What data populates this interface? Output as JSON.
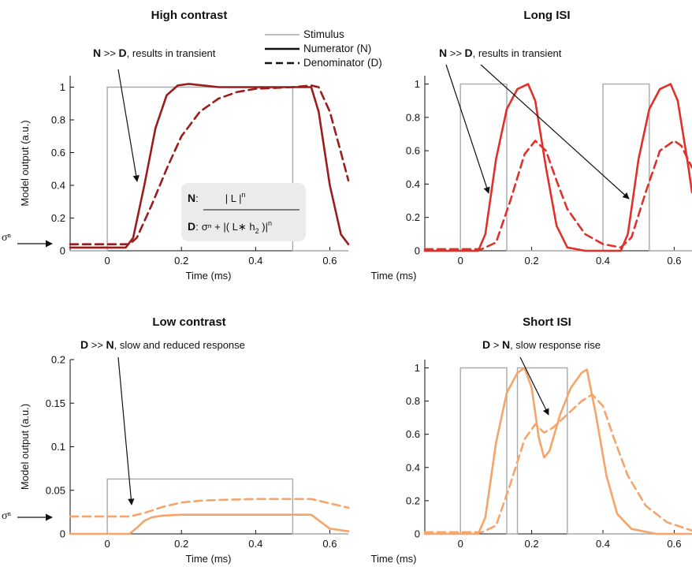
{
  "legend": {
    "entries": [
      {
        "label": "Stimulus",
        "style": "stimulus"
      },
      {
        "label": "Numerator (N)",
        "style": "solid"
      },
      {
        "label": "Denominator (D)",
        "style": "dashed"
      }
    ]
  },
  "equation": {
    "n_label": "N",
    "n_colon": ":",
    "n_expr": "| L |",
    "n_exp": "n",
    "d_label": "D",
    "d_colon": ":",
    "d_expr": "σⁿ + |( L∗ h",
    "d_sub": "2",
    "d_close": " )|",
    "d_exp": "n"
  },
  "sigma_label": "σⁿ",
  "colors": {
    "dark_red": "#9b1c1c",
    "red": "#e0302a",
    "orange": "#f5a46a",
    "stimulus": "#a9a9a9",
    "equation_bg": "#ebebeb"
  },
  "chart_data": [
    {
      "type": "line",
      "title": "High contrast",
      "xlabel": "Time (ms)",
      "ylabel": "Model output (a.u.)",
      "xlim": [
        -0.1,
        0.65
      ],
      "ylim": [
        0,
        1.07
      ],
      "xticks": [
        "0",
        "0.2",
        "0.4",
        "0.6"
      ],
      "xtick_values": [
        0,
        0.2,
        0.4,
        0.6
      ],
      "yticks": [
        "0",
        "0.2",
        "0.4",
        "0.6",
        "0.8",
        "1"
      ],
      "ytick_values": [
        0,
        0.2,
        0.4,
        0.6,
        0.8,
        1
      ],
      "annotation": {
        "bold": "N",
        "op": " >> ",
        "bold2": "D",
        "rest": ", results in transient"
      },
      "series": [
        {
          "name": "Stimulus",
          "style": "stimulus",
          "x": [
            -0.1,
            0,
            0,
            0.5,
            0.5,
            0.65
          ],
          "y": [
            0,
            0,
            1,
            1,
            0,
            0
          ]
        },
        {
          "name": "Numerator (N)",
          "style": "solid",
          "color": "dark_red",
          "x": [
            -0.1,
            0.05,
            0.07,
            0.1,
            0.13,
            0.16,
            0.19,
            0.22,
            0.26,
            0.3,
            0.4,
            0.5,
            0.55,
            0.57,
            0.6,
            0.63,
            0.65
          ],
          "y": [
            0.02,
            0.02,
            0.08,
            0.4,
            0.75,
            0.95,
            1.01,
            1.02,
            1.01,
            1.0,
            1.0,
            1.0,
            1.0,
            0.85,
            0.4,
            0.1,
            0.04
          ]
        },
        {
          "name": "Denominator (D)",
          "style": "dashed",
          "color": "dark_red",
          "x": [
            -0.1,
            0.06,
            0.08,
            0.12,
            0.16,
            0.2,
            0.25,
            0.3,
            0.35,
            0.4,
            0.5,
            0.55,
            0.57,
            0.6,
            0.63,
            0.65
          ],
          "y": [
            0.04,
            0.04,
            0.08,
            0.28,
            0.5,
            0.7,
            0.85,
            0.93,
            0.97,
            0.99,
            1.0,
            1.01,
            1.0,
            0.85,
            0.6,
            0.43
          ]
        }
      ]
    },
    {
      "type": "line",
      "title": "Long ISI",
      "xlabel": "Time (ms)",
      "ylabel": "",
      "xlim": [
        -0.1,
        0.65
      ],
      "ylim": [
        0,
        1.05
      ],
      "xticks": [
        "0",
        "0.2",
        "0.4",
        "0.6"
      ],
      "xtick_values": [
        0,
        0.2,
        0.4,
        0.6
      ],
      "yticks": [
        "0",
        "0.2",
        "0.4",
        "0.6",
        "0.8",
        "1"
      ],
      "ytick_values": [
        0,
        0.2,
        0.4,
        0.6,
        0.8,
        1
      ],
      "annotation": {
        "bold": "N",
        "op": " >> ",
        "bold2": "D",
        "rest": ", results in transient"
      },
      "series": [
        {
          "name": "Stimulus",
          "style": "stimulus",
          "x": [
            -0.1,
            0,
            0,
            0.13,
            0.13,
            0.4,
            0.4,
            0.53,
            0.53,
            0.65
          ],
          "y": [
            0,
            0,
            1,
            1,
            0,
            0,
            1,
            1,
            0,
            0
          ]
        },
        {
          "name": "Numerator (N)",
          "style": "solid",
          "color": "red",
          "x": [
            -0.1,
            0.05,
            0.07,
            0.1,
            0.13,
            0.16,
            0.19,
            0.21,
            0.24,
            0.27,
            0.3,
            0.35,
            0.45,
            0.47,
            0.5,
            0.53,
            0.56,
            0.59,
            0.61,
            0.64,
            0.65
          ],
          "y": [
            0.0,
            0.0,
            0.1,
            0.55,
            0.85,
            0.97,
            1.0,
            0.9,
            0.5,
            0.15,
            0.02,
            0.0,
            0.0,
            0.1,
            0.55,
            0.85,
            0.97,
            1.0,
            0.9,
            0.5,
            0.35
          ]
        },
        {
          "name": "Denominator (D)",
          "style": "dashed",
          "color": "red",
          "x": [
            -0.1,
            0.06,
            0.1,
            0.14,
            0.18,
            0.21,
            0.24,
            0.27,
            0.3,
            0.35,
            0.4,
            0.45,
            0.48,
            0.52,
            0.56,
            0.6,
            0.62,
            0.65
          ],
          "y": [
            0.01,
            0.01,
            0.05,
            0.3,
            0.58,
            0.66,
            0.6,
            0.42,
            0.25,
            0.1,
            0.04,
            0.02,
            0.08,
            0.35,
            0.6,
            0.66,
            0.63,
            0.5
          ]
        }
      ]
    },
    {
      "type": "line",
      "title": "Low contrast",
      "xlabel": "Time (ms)",
      "ylabel": "Model output (a.u.)",
      "xlim": [
        -0.1,
        0.65
      ],
      "ylim": [
        0,
        0.2
      ],
      "xticks": [
        "0",
        "0.2",
        "0.4",
        "0.6"
      ],
      "xtick_values": [
        0,
        0.2,
        0.4,
        0.6
      ],
      "yticks": [
        "0",
        "0.05",
        "0.1",
        "0.15",
        "0.2"
      ],
      "ytick_values": [
        0,
        0.05,
        0.1,
        0.15,
        0.2
      ],
      "annotation": {
        "bold": "D",
        "op": " >> ",
        "bold2": "N",
        "rest": ", slow and reduced response"
      },
      "series": [
        {
          "name": "Stimulus",
          "style": "stimulus",
          "x": [
            -0.1,
            0,
            0,
            0.5,
            0.5,
            0.65
          ],
          "y": [
            0,
            0,
            0.063,
            0.063,
            0,
            0
          ]
        },
        {
          "name": "Numerator (N)",
          "style": "solid",
          "color": "orange",
          "x": [
            -0.1,
            0.06,
            0.08,
            0.1,
            0.12,
            0.15,
            0.2,
            0.3,
            0.4,
            0.5,
            0.55,
            0.6,
            0.65
          ],
          "y": [
            0.0,
            0.0,
            0.007,
            0.015,
            0.019,
            0.021,
            0.022,
            0.022,
            0.022,
            0.022,
            0.022,
            0.006,
            0.003
          ]
        },
        {
          "name": "Denominator (D)",
          "style": "dashed",
          "color": "orange",
          "x": [
            -0.1,
            0.06,
            0.1,
            0.15,
            0.2,
            0.25,
            0.3,
            0.4,
            0.5,
            0.55,
            0.6,
            0.65
          ],
          "y": [
            0.02,
            0.02,
            0.024,
            0.031,
            0.036,
            0.038,
            0.039,
            0.04,
            0.04,
            0.04,
            0.035,
            0.03
          ]
        }
      ]
    },
    {
      "type": "line",
      "title": "Short ISI",
      "xlabel": "Time (ms)",
      "ylabel": "",
      "xlim": [
        -0.1,
        0.65
      ],
      "ylim": [
        0,
        1.05
      ],
      "xticks": [
        "0",
        "0.2",
        "0.4",
        "0.6"
      ],
      "xtick_values": [
        0,
        0.2,
        0.4,
        0.6
      ],
      "yticks": [
        "0",
        "0.2",
        "0.4",
        "0.6",
        "0.8",
        "1"
      ],
      "ytick_values": [
        0,
        0.2,
        0.4,
        0.6,
        0.8,
        1
      ],
      "annotation": {
        "bold": "D",
        "op": " > ",
        "bold2": "N",
        "rest": ", slow response rise"
      },
      "series": [
        {
          "name": "Stimulus",
          "style": "stimulus",
          "x": [
            -0.1,
            0,
            0,
            0.13,
            0.13,
            0.16,
            0.16,
            0.3,
            0.3,
            0.65
          ],
          "y": [
            0,
            0,
            1,
            1,
            0,
            0,
            1,
            1,
            0,
            0
          ]
        },
        {
          "name": "Numerator (N)",
          "style": "solid",
          "color": "orange",
          "x": [
            -0.1,
            0.05,
            0.07,
            0.1,
            0.13,
            0.16,
            0.18,
            0.2,
            0.22,
            0.235,
            0.25,
            0.28,
            0.31,
            0.34,
            0.355,
            0.38,
            0.41,
            0.44,
            0.48,
            0.55,
            0.65
          ],
          "y": [
            0.0,
            0.0,
            0.1,
            0.55,
            0.85,
            0.97,
            1.0,
            0.88,
            0.58,
            0.46,
            0.5,
            0.72,
            0.88,
            0.97,
            0.99,
            0.72,
            0.35,
            0.12,
            0.03,
            0.0,
            0.0
          ]
        },
        {
          "name": "Denominator (D)",
          "style": "dashed",
          "color": "orange",
          "x": [
            -0.1,
            0.06,
            0.1,
            0.14,
            0.18,
            0.21,
            0.235,
            0.26,
            0.3,
            0.34,
            0.37,
            0.4,
            0.43,
            0.47,
            0.52,
            0.58,
            0.65
          ],
          "y": [
            0.01,
            0.01,
            0.05,
            0.3,
            0.57,
            0.66,
            0.61,
            0.64,
            0.72,
            0.8,
            0.84,
            0.77,
            0.58,
            0.35,
            0.17,
            0.07,
            0.02
          ]
        }
      ]
    }
  ]
}
